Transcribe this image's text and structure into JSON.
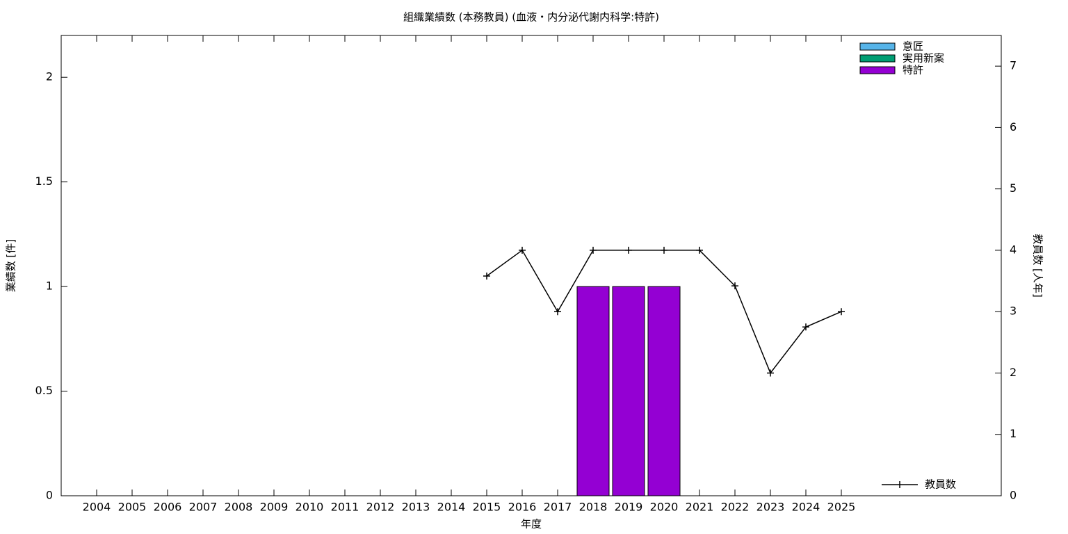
{
  "chart_data": {
    "type": "bar",
    "stacked": true,
    "title": "組織業績数 (本務教員) (血液・内分泌代謝内科学:特許)",
    "x_label": "年度",
    "y_label": "業績数 [件]",
    "y2_label": "教員数 [人年]",
    "categories": [
      "2004",
      "2005",
      "2006",
      "2007",
      "2008",
      "2009",
      "2010",
      "2011",
      "2012",
      "2013",
      "2014",
      "2015",
      "2016",
      "2017",
      "2018",
      "2019",
      "2020",
      "2021",
      "2022",
      "2023",
      "2024",
      "2025"
    ],
    "ylim": [
      0,
      2.2
    ],
    "yticks": [
      0,
      0.5,
      1,
      1.5,
      2
    ],
    "y2lim": [
      0,
      7.5
    ],
    "y2ticks": [
      0,
      1,
      2,
      3,
      4,
      5,
      6,
      7
    ],
    "series": [
      {
        "name": "意匠",
        "color": "#56b4e9",
        "values": [
          0,
          0,
          0,
          0,
          0,
          0,
          0,
          0,
          0,
          0,
          0,
          0,
          0,
          0,
          0,
          0,
          0,
          0,
          0,
          0,
          0,
          0
        ]
      },
      {
        "name": "実用新案",
        "color": "#009e73",
        "values": [
          0,
          0,
          0,
          0,
          0,
          0,
          0,
          0,
          0,
          0,
          0,
          0,
          0,
          0,
          0,
          0,
          0,
          0,
          0,
          0,
          0,
          0
        ]
      },
      {
        "name": "特許",
        "color": "#9400d3",
        "values": [
          0,
          0,
          0,
          0,
          0,
          0,
          0,
          0,
          0,
          0,
          0,
          0,
          0,
          0,
          1,
          1,
          1,
          0,
          0,
          0,
          0,
          0
        ]
      },
      {
        "name": "教員数",
        "type": "line",
        "axis": "y2",
        "color": "#000000",
        "values": [
          null,
          null,
          null,
          null,
          null,
          null,
          null,
          null,
          null,
          null,
          null,
          3.58,
          4,
          3,
          4,
          4,
          4,
          4,
          3.42,
          2,
          2.75,
          3
        ]
      }
    ]
  }
}
